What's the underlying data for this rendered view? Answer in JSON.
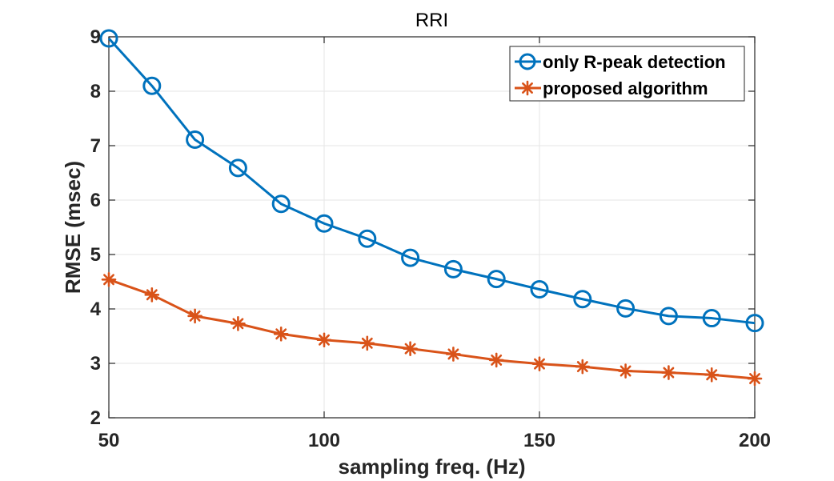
{
  "chart_data": {
    "type": "line",
    "title": "RRI",
    "xlabel": "sampling freq. (Hz)",
    "ylabel": "RMSE (msec)",
    "xlim": [
      50,
      200
    ],
    "ylim": [
      2,
      9
    ],
    "xticks": [
      50,
      100,
      150,
      200
    ],
    "yticks": [
      2,
      3,
      4,
      5,
      6,
      7,
      8,
      9
    ],
    "grid": true,
    "legend_position": "top-right",
    "x": [
      50,
      60,
      70,
      80,
      90,
      100,
      110,
      120,
      130,
      140,
      150,
      160,
      170,
      180,
      190,
      200
    ],
    "series": [
      {
        "name": "only R-peak detection",
        "color": "#0072BD",
        "marker": "circle",
        "values": [
          8.97,
          8.1,
          7.11,
          6.59,
          5.93,
          5.57,
          5.29,
          4.94,
          4.73,
          4.55,
          4.36,
          4.18,
          4.01,
          3.87,
          3.83,
          3.74
        ]
      },
      {
        "name": "proposed algorithm",
        "color": "#D95319",
        "marker": "asterisk",
        "values": [
          4.54,
          4.26,
          3.87,
          3.73,
          3.54,
          3.43,
          3.37,
          3.27,
          3.17,
          3.06,
          2.99,
          2.94,
          2.86,
          2.83,
          2.79,
          2.72
        ]
      }
    ]
  }
}
